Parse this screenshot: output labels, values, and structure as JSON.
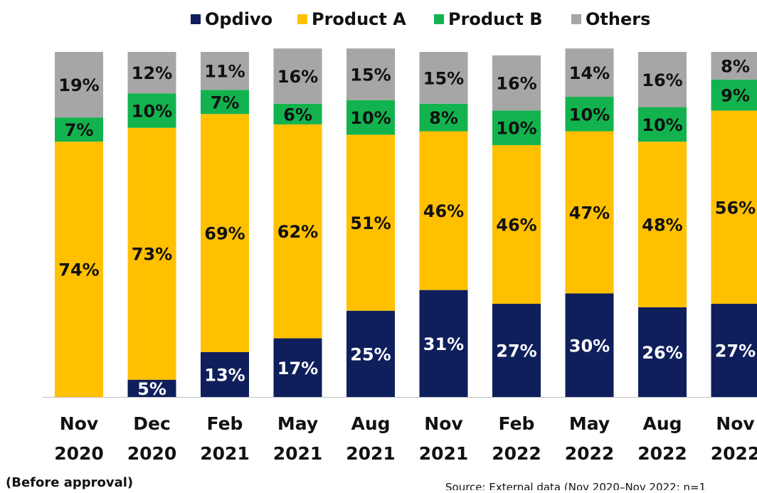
{
  "chart_data": {
    "type": "bar",
    "stacked": true,
    "categories": [
      [
        "Nov",
        "2020"
      ],
      [
        "Dec",
        "2020"
      ],
      [
        "Feb",
        "2021"
      ],
      [
        "May",
        "2021"
      ],
      [
        "Aug",
        "2021"
      ],
      [
        "Nov",
        "2021"
      ],
      [
        "Feb",
        "2022"
      ],
      [
        "May",
        "2022"
      ],
      [
        "Aug",
        "2022"
      ],
      [
        "Nov",
        "2022"
      ]
    ],
    "series": [
      {
        "name": "Opdivo",
        "color": "#0f1f5c",
        "values": [
          0,
          5,
          13,
          17,
          25,
          31,
          27,
          30,
          26,
          27
        ]
      },
      {
        "name": "Product A",
        "color": "#ffc000",
        "values": [
          74,
          73,
          69,
          62,
          51,
          46,
          46,
          47,
          48,
          56
        ]
      },
      {
        "name": "Product B",
        "color": "#12b34e",
        "values": [
          7,
          10,
          7,
          6,
          10,
          8,
          10,
          10,
          10,
          9
        ]
      },
      {
        "name": "Others",
        "color": "#a6a6a6",
        "values": [
          19,
          12,
          11,
          16,
          15,
          15,
          16,
          14,
          16,
          8
        ]
      }
    ],
    "data_labels": [
      [
        "",
        "74%",
        "7%",
        "19%"
      ],
      [
        "5%",
        "73%",
        "10%",
        "12%"
      ],
      [
        "13%",
        "69%",
        "7%",
        "11%"
      ],
      [
        "17%",
        "62%",
        "6%",
        "16%"
      ],
      [
        "25%",
        "51%",
        "10%",
        "15%"
      ],
      [
        "31%",
        "46%",
        "8%",
        "15%"
      ],
      [
        "27%",
        "46%",
        "10%",
        "16%"
      ],
      [
        "30%",
        "47%",
        "10%",
        "14%"
      ],
      [
        "26%",
        "48%",
        "10%",
        "16%"
      ],
      [
        "27%",
        "56%",
        "9%",
        "8%"
      ]
    ],
    "ylim": [
      0,
      100
    ],
    "legend_position": "top",
    "grid": false,
    "annotation": "(Before approval)",
    "source": "Source: External data  (Nov 2020–Nov 2022: n=1"
  }
}
